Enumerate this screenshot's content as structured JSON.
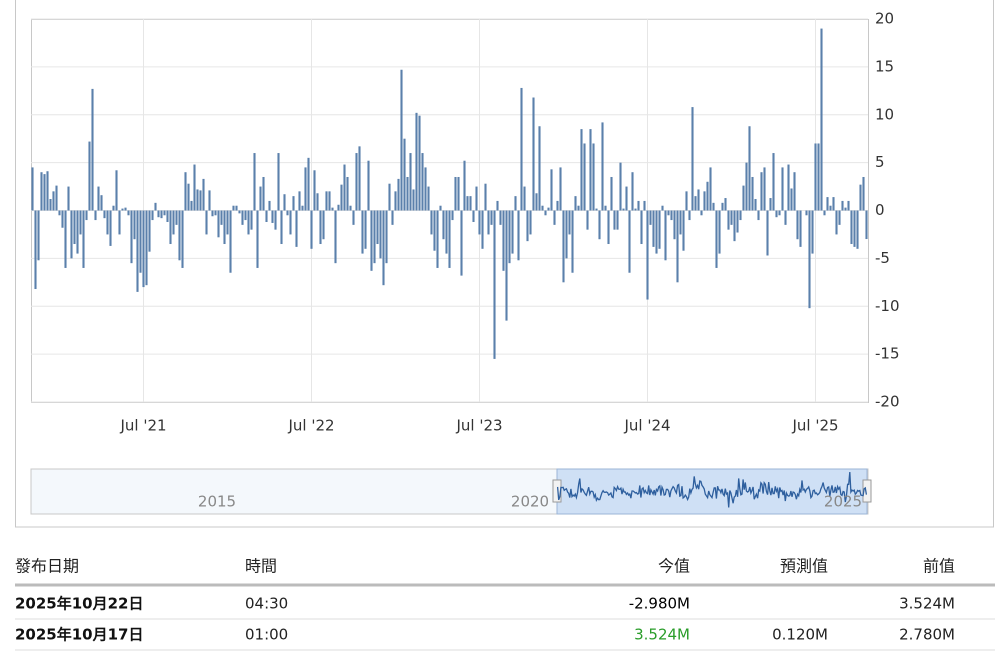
{
  "chart_data": {
    "type": "bar",
    "color": "#5b80ab",
    "ylim": [
      -20,
      20
    ],
    "yticks": [
      20,
      15,
      10,
      5,
      0,
      -5,
      -10,
      -15,
      -20
    ],
    "grid": true,
    "categories": [
      null,
      null,
      null,
      null,
      null,
      null,
      null,
      null,
      null,
      null,
      null,
      null,
      null,
      null,
      null,
      null,
      null,
      null,
      null,
      null,
      null,
      null,
      null,
      null,
      null,
      null,
      null,
      null,
      null,
      null,
      null,
      null,
      null,
      null,
      null,
      null,
      null,
      "Jul '21",
      null,
      null,
      null,
      null,
      null,
      null,
      null,
      null,
      null,
      null,
      null,
      null,
      null,
      null,
      null,
      null,
      null,
      null,
      null,
      null,
      null,
      null,
      null,
      null,
      null,
      null,
      null,
      null,
      null,
      null,
      null,
      null,
      null,
      null,
      null,
      null,
      null,
      null,
      null,
      null,
      null,
      null,
      null,
      null,
      null,
      null,
      null,
      null,
      null,
      null,
      null,
      null,
      null,
      null,
      null,
      "Jul '22",
      null,
      null,
      null,
      null,
      null,
      null,
      null,
      null,
      null,
      null,
      null,
      null,
      null,
      null,
      null,
      null,
      null,
      null,
      null,
      null,
      null,
      null,
      null,
      null,
      null,
      null,
      null,
      null,
      null,
      null,
      null,
      null,
      null,
      null,
      null,
      null,
      null,
      null,
      null,
      null,
      null,
      null,
      null,
      null,
      null,
      null,
      null,
      null,
      null,
      null,
      null,
      null,
      null,
      null,
      null,
      "Jul '23",
      null,
      null,
      null,
      null,
      null,
      null,
      null,
      null,
      null,
      null,
      null,
      null,
      null,
      null,
      null,
      null,
      null,
      null,
      null,
      null,
      null,
      null,
      null,
      null,
      null,
      null,
      null,
      null,
      null,
      null,
      null,
      null,
      null,
      null,
      null,
      null,
      null,
      null,
      null,
      null,
      null,
      null,
      null,
      null,
      null,
      null,
      null,
      null,
      null,
      null,
      null,
      null,
      null,
      null,
      null,
      "Jul '24",
      null,
      null,
      null,
      null,
      null,
      null,
      null,
      null,
      null,
      null,
      null,
      null,
      null,
      null,
      null,
      null,
      null,
      null,
      null,
      null,
      null,
      null,
      null,
      null,
      null,
      null,
      null,
      null,
      null,
      null,
      null,
      null,
      null,
      null,
      null,
      null,
      null,
      null,
      null,
      null,
      null,
      null,
      null,
      null,
      null,
      null,
      null,
      null,
      null,
      null,
      null,
      null,
      null,
      null,
      null,
      "Jul '25",
      null,
      null,
      null,
      null,
      null,
      null,
      null,
      null,
      null,
      null,
      null,
      null,
      null,
      null,
      null,
      null,
      null
    ],
    "values": [
      4.5,
      -8.2,
      -5.2,
      4,
      3.8,
      4.1,
      1.2,
      2,
      2.6,
      -0.5,
      -1.8,
      -6,
      2.5,
      -5,
      -3.5,
      -4.5,
      -2.5,
      -6,
      -1,
      7.2,
      12.7,
      -1,
      2.5,
      1.6,
      -0.8,
      -2.5,
      -3.7,
      0.5,
      4.2,
      -2.5,
      0.2,
      0.3,
      -0.5,
      -5.5,
      -3,
      -8.5,
      -6.5,
      -8,
      -7.8,
      -4.3,
      -1,
      0.8,
      -0.7,
      -0.8,
      -0.5,
      -1.2,
      -3.5,
      -2.5,
      -1.5,
      -5.2,
      -6,
      4,
      2.8,
      1,
      4.8,
      2.2,
      2.1,
      3.3,
      -2.5,
      2.1,
      -0.6,
      -0.5,
      -2.8,
      -1.5,
      -3.5,
      -2.5,
      -6.5,
      0.5,
      0.5,
      -0.3,
      -1.5,
      -1,
      -2.5,
      -2,
      6,
      -6,
      2.5,
      3.5,
      -1.2,
      1,
      -1.3,
      -2,
      6,
      -3.5,
      1.7,
      -0.5,
      -2.5,
      1.5,
      -3.8,
      2,
      0.5,
      4.5,
      5.5,
      -4,
      4.2,
      1.8,
      -3.5,
      -3,
      2,
      2,
      0.3,
      -5.5,
      0.6,
      2.7,
      4.8,
      3.5,
      0.5,
      -1.5,
      6,
      6.7,
      -4.5,
      -4,
      5.2,
      -6.3,
      -5.5,
      -3.5,
      -5,
      -7.8,
      -5.5,
      2.8,
      -1.5,
      2,
      3.3,
      14.7,
      7.5,
      3.5,
      6,
      2.2,
      10.2,
      9.9,
      6,
      4.5,
      2.5,
      -2.5,
      -4.2,
      -6,
      0.5,
      -3,
      -4.5,
      -6,
      -1,
      3.5,
      3.5,
      -6.8,
      5.2,
      1.5,
      1.5,
      -1.2,
      2.5,
      -2.5,
      -4,
      2.8,
      -2.5,
      -1.5,
      -15.5,
      1,
      -1.5,
      -6.3,
      -11.5,
      -5.5,
      -4.5,
      1.5,
      -5.2,
      12.8,
      2.5,
      -3.2,
      -2.5,
      11.8,
      1.8,
      8.8,
      0.5,
      -0.5,
      0.3,
      4.3,
      -1.5,
      1,
      4.5,
      -7.5,
      -5,
      -2.5,
      -6.5,
      1.5,
      0.5,
      8.5,
      7,
      -2,
      8.5,
      7,
      0.2,
      -3,
      9.2,
      0.5,
      -3.5,
      3.5,
      -2,
      -2,
      5,
      0.2,
      2.5,
      -6.5,
      4,
      0.2,
      1,
      -3.5,
      1,
      -9.3,
      -1.5,
      -3.8,
      -4.5,
      -4,
      0.5,
      -5.2,
      -0.5,
      -1,
      -3,
      -7.5,
      -2.5,
      -4.2,
      2,
      -1,
      10.8,
      1.5,
      2.2,
      -0.5,
      2,
      3,
      4.5,
      0.8,
      -6,
      -4.5,
      0.8,
      1.3,
      -2,
      -1.5,
      -3.2,
      -2.3,
      -1,
      2.6,
      5,
      8.8,
      3.5,
      1.2,
      -1,
      4,
      4.5,
      -4.7,
      1.3,
      6,
      -0.7,
      -0.5,
      4.5,
      -1.5,
      4.8,
      2.3,
      4,
      -3,
      -3.8,
      0,
      -0.5,
      -10.2,
      -4.5,
      7,
      7,
      19,
      -0.5,
      1.4,
      0.5,
      1.4,
      -2.5,
      -1.5,
      1,
      0.3,
      1,
      -3.5,
      -3.8,
      -4,
      2.7,
      3.5,
      -2.98
    ],
    "navigator_labels": [
      "2015",
      "2020",
      "2025"
    ]
  },
  "table": {
    "headers": [
      "發布日期",
      "時間",
      "今值",
      "預測值",
      "前值"
    ],
    "rows": [
      {
        "date": "2025年10月22日",
        "time": "04:30",
        "actual": "-2.980M",
        "forecast": null,
        "previous": "3.524M",
        "actual_color": "#000000"
      },
      {
        "date": "2025年10月17日",
        "time": "01:00",
        "actual": "3.524M",
        "forecast": "0.120M",
        "previous": "2.780M",
        "actual_color": "#2a9d2a"
      }
    ]
  }
}
